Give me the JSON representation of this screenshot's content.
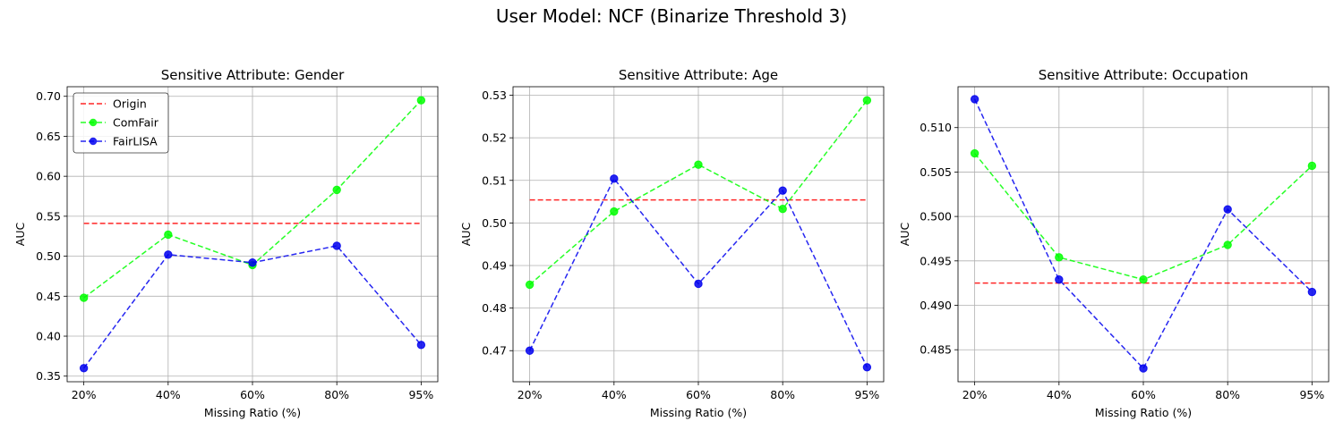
{
  "figure_title": "User Model: NCF (Binarize Threshold 3)",
  "colors": {
    "origin": "#ff0000",
    "comfair": "#00ff00",
    "fairlisa": "#0000ee",
    "grid": "#b0b0b0"
  },
  "chart_data": [
    {
      "type": "line",
      "title": "Sensitive Attribute: Gender",
      "xlabel": "Missing Ratio (%)",
      "ylabel": "AUC",
      "categories": [
        "20%",
        "40%",
        "60%",
        "80%",
        "95%"
      ],
      "ylim": [
        0.343,
        0.712
      ],
      "yticks": [
        0.35,
        0.4,
        0.45,
        0.5,
        0.55,
        0.6,
        0.65,
        0.7
      ],
      "ytick_labels": [
        "0.35",
        "0.40",
        "0.45",
        "0.50",
        "0.55",
        "0.60",
        "0.65",
        "0.70"
      ],
      "grid": true,
      "legend": "top-left",
      "series": [
        {
          "name": "Origin",
          "values": [
            0.541,
            0.541,
            0.541,
            0.541,
            0.541
          ],
          "color": "#ff0000",
          "markers": false
        },
        {
          "name": "ComFair",
          "values": [
            0.448,
            0.527,
            0.489,
            0.583,
            0.695
          ],
          "color": "#00ff00",
          "markers": true
        },
        {
          "name": "FairLISA",
          "values": [
            0.36,
            0.502,
            0.492,
            0.513,
            0.389
          ],
          "color": "#0000ee",
          "markers": true
        }
      ]
    },
    {
      "type": "line",
      "title": "Sensitive Attribute: Age",
      "xlabel": "Missing Ratio (%)",
      "ylabel": "AUC",
      "categories": [
        "20%",
        "40%",
        "60%",
        "80%",
        "95%"
      ],
      "ylim": [
        0.4627,
        0.532
      ],
      "yticks": [
        0.47,
        0.48,
        0.49,
        0.5,
        0.51,
        0.52,
        0.53
      ],
      "ytick_labels": [
        "0.47",
        "0.48",
        "0.49",
        "0.50",
        "0.51",
        "0.52",
        "0.53"
      ],
      "grid": true,
      "legend": "none",
      "series": [
        {
          "name": "Origin",
          "values": [
            0.5054,
            0.5054,
            0.5054,
            0.5054,
            0.5054
          ],
          "color": "#ff0000",
          "markers": false
        },
        {
          "name": "ComFair",
          "values": [
            0.4855,
            0.5027,
            0.5137,
            0.5033,
            0.5288
          ],
          "color": "#00ff00",
          "markers": true
        },
        {
          "name": "FairLISA",
          "values": [
            0.47,
            0.5104,
            0.4857,
            0.5076,
            0.4661
          ],
          "color": "#0000ee",
          "markers": true
        }
      ]
    },
    {
      "type": "line",
      "title": "Sensitive Attribute: Occupation",
      "xlabel": "Missing Ratio (%)",
      "ylabel": "AUC",
      "categories": [
        "20%",
        "40%",
        "60%",
        "80%",
        "95%"
      ],
      "ylim": [
        0.4814,
        0.5146
      ],
      "yticks": [
        0.485,
        0.49,
        0.495,
        0.5,
        0.505,
        0.51
      ],
      "ytick_labels": [
        "0.485",
        "0.490",
        "0.495",
        "0.500",
        "0.505",
        "0.510"
      ],
      "grid": true,
      "legend": "none",
      "series": [
        {
          "name": "Origin",
          "values": [
            0.4925,
            0.4925,
            0.4925,
            0.4925,
            0.4925
          ],
          "color": "#ff0000",
          "markers": false
        },
        {
          "name": "ComFair",
          "values": [
            0.5071,
            0.4954,
            0.4929,
            0.4968,
            0.5057
          ],
          "color": "#00ff00",
          "markers": true
        },
        {
          "name": "FairLISA",
          "values": [
            0.5132,
            0.4929,
            0.4829,
            0.5008,
            0.4915
          ],
          "color": "#0000ee",
          "markers": true
        }
      ]
    }
  ]
}
